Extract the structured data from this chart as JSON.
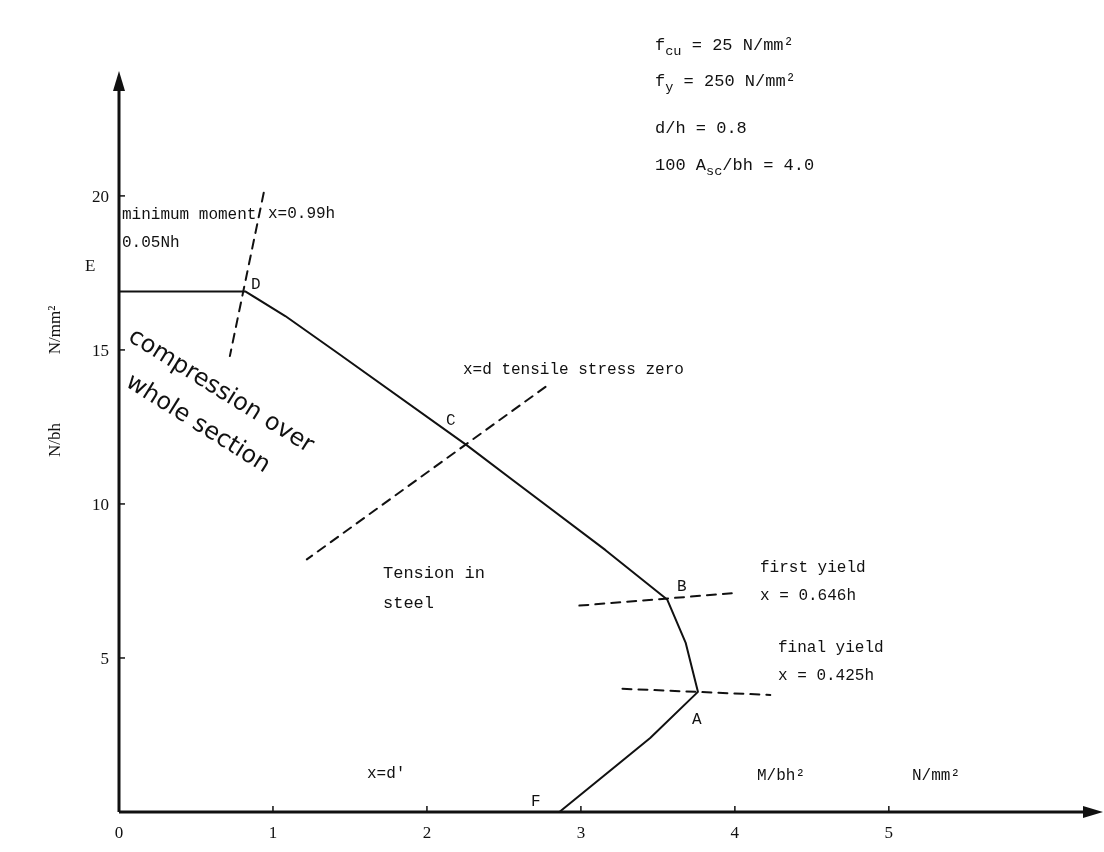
{
  "chart_data": {
    "type": "line",
    "xlabel": "M/bh²",
    "ylabel": "N/bh",
    "xlim": [
      0,
      6.3
    ],
    "ylim": [
      0,
      23.6
    ],
    "xticks": [
      0,
      1,
      2,
      3,
      4,
      5
    ],
    "yticks": [
      5,
      10,
      15,
      20
    ],
    "grid": false,
    "series": [
      {
        "color": "#111111",
        "line_style": "solid",
        "x": [
          0,
          0.82,
          1.08,
          1.42,
          2.26,
          3.16,
          3.56,
          3.68,
          3.76,
          3.45,
          2.86
        ],
        "values": [
          16.9,
          16.9,
          16.1,
          14.9,
          11.9,
          8.5,
          6.9,
          5.5,
          3.9,
          2.4,
          0
        ]
      },
      {
        "color": "#111111",
        "line_style": "dashed",
        "x": [
          0.94,
          0.72
        ],
        "values": [
          20.1,
          14.8
        ]
      },
      {
        "color": "#111111",
        "line_style": "dashed",
        "x": [
          2.77,
          1.22
        ],
        "values": [
          13.8,
          8.2
        ]
      },
      {
        "color": "#111111",
        "line_style": "dashed",
        "x": [
          2.99,
          3.98
        ],
        "values": [
          6.7,
          7.1
        ]
      },
      {
        "color": "#111111",
        "line_style": "dashed",
        "x": [
          3.27,
          4.23
        ],
        "values": [
          4.0,
          3.8
        ]
      }
    ],
    "annotations": [
      "f$_{cu}$ = 25 N/mm²",
      "f$_{y}$ = 250 N/mm²",
      "d/h = 0.8",
      "100 A$_{sc}$/bh = 4.0",
      "E",
      "minimum moment",
      "0.05Nh",
      "compression over whole section",
      "Tension in steel",
      "N/mm²",
      "D",
      "C",
      "B",
      "A",
      "F",
      "x=0.99h",
      "x=d tensile stress zero",
      "first yield",
      "x = 0.646h",
      "final yield",
      "x = 0.425h",
      "x=d'",
      "N/mm²"
    ]
  }
}
